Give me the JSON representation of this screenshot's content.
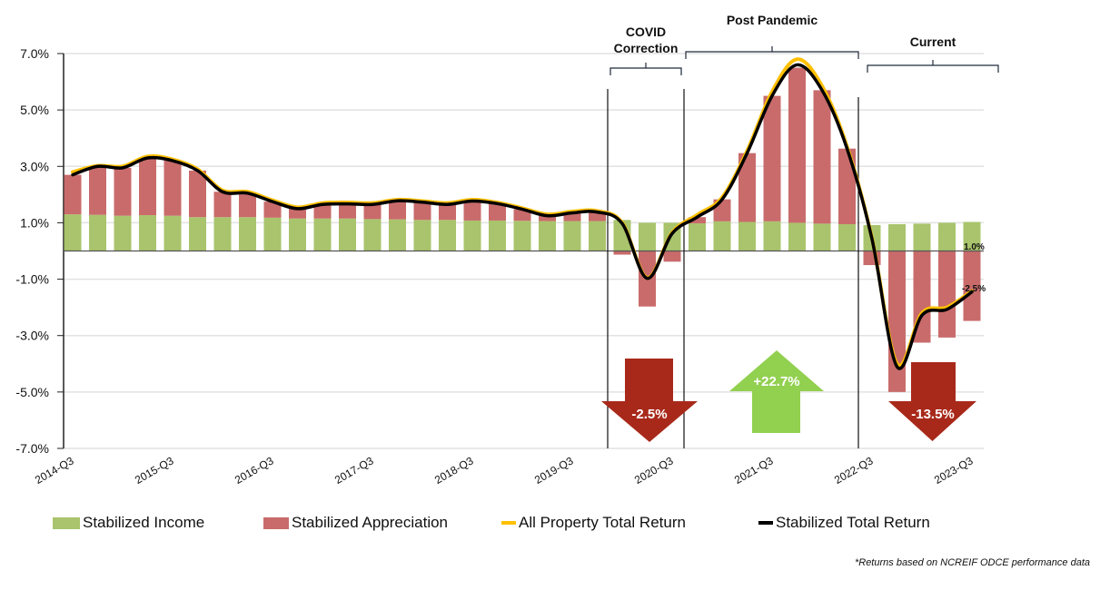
{
  "chart_data": {
    "type": "bar+line",
    "title": "",
    "xlabel": "",
    "ylabel": "",
    "ylim": [
      -7,
      7
    ],
    "yticks": [
      "7.0%",
      "5.0%",
      "3.0%",
      "1.0%",
      "-1.0%",
      "-3.0%",
      "-5.0%",
      "-7.0%"
    ],
    "ytick_values": [
      7,
      5,
      3,
      1,
      -1,
      -3,
      -5,
      -7
    ],
    "grid": true,
    "legend_position": "bottom",
    "categories": [
      "2014-Q3",
      "2014-Q4",
      "2015-Q1",
      "2015-Q2",
      "2015-Q3",
      "2015-Q4",
      "2016-Q1",
      "2016-Q2",
      "2016-Q3",
      "2016-Q4",
      "2017-Q1",
      "2017-Q2",
      "2017-Q3",
      "2017-Q4",
      "2018-Q1",
      "2018-Q2",
      "2018-Q3",
      "2018-Q4",
      "2019-Q1",
      "2019-Q2",
      "2019-Q3",
      "2019-Q4",
      "2020-Q1",
      "2020-Q2",
      "2020-Q3",
      "2020-Q4",
      "2021-Q1",
      "2021-Q2",
      "2021-Q3",
      "2021-Q4",
      "2022-Q1",
      "2022-Q2",
      "2022-Q3",
      "2022-Q4",
      "2023-Q1",
      "2023-Q2",
      "2023-Q3"
    ],
    "xtick_labels": [
      "2014-Q3",
      "2015-Q3",
      "2016-Q3",
      "2017-Q3",
      "2018-Q3",
      "2019-Q3",
      "2020-Q3",
      "2021-Q3",
      "2022-Q3",
      "2023-Q3"
    ],
    "series": [
      {
        "name": "Stabilized Income",
        "type": "stacked-bar",
        "color": "#A9C46C",
        "values": [
          1.3,
          1.28,
          1.25,
          1.27,
          1.25,
          1.2,
          1.2,
          1.2,
          1.18,
          1.15,
          1.15,
          1.15,
          1.13,
          1.12,
          1.1,
          1.1,
          1.08,
          1.08,
          1.07,
          1.06,
          1.06,
          1.06,
          1.1,
          1.0,
          1.0,
          0.98,
          1.05,
          1.03,
          1.05,
          1.0,
          0.97,
          0.95,
          0.92,
          0.95,
          0.97,
          1.0,
          1.03
        ]
      },
      {
        "name": "Stabilized Appreciation",
        "type": "stacked-bar",
        "color": "#C96B6B",
        "values": [
          1.4,
          1.72,
          1.7,
          2.03,
          1.95,
          1.65,
          0.9,
          0.85,
          0.57,
          0.35,
          0.5,
          0.52,
          0.52,
          0.66,
          0.63,
          0.55,
          0.69,
          0.6,
          0.41,
          0.19,
          0.29,
          0.32,
          -0.13,
          -1.97,
          -0.38,
          0.22,
          0.78,
          2.44,
          4.45,
          5.5,
          4.73,
          2.68,
          -0.5,
          -5.0,
          -3.25,
          -3.07,
          -2.48
        ]
      },
      {
        "name": "All Property Total Return",
        "type": "line",
        "color": "#FFC000",
        "values": [
          2.8,
          3.02,
          3.0,
          3.35,
          3.25,
          2.9,
          2.15,
          2.1,
          1.8,
          1.55,
          1.7,
          1.72,
          1.7,
          1.82,
          1.77,
          1.7,
          1.82,
          1.72,
          1.52,
          1.3,
          1.4,
          1.42,
          1.0,
          -0.95,
          0.65,
          1.28,
          1.9,
          3.55,
          5.65,
          6.8,
          5.85,
          3.7,
          0.45,
          -4.0,
          -2.2,
          -2.0,
          -1.42
        ]
      },
      {
        "name": "Stabilized Total Return",
        "type": "line",
        "color": "#000000",
        "values": [
          2.7,
          3.0,
          2.95,
          3.3,
          3.2,
          2.85,
          2.1,
          2.05,
          1.75,
          1.5,
          1.65,
          1.67,
          1.65,
          1.78,
          1.73,
          1.65,
          1.77,
          1.68,
          1.48,
          1.25,
          1.35,
          1.38,
          0.97,
          -0.97,
          0.62,
          1.2,
          1.83,
          3.47,
          5.5,
          6.6,
          5.7,
          3.63,
          0.42,
          -4.1,
          -2.28,
          -2.07,
          -1.45
        ]
      }
    ],
    "data_labels": [
      {
        "text": "1.0%",
        "category": "2023-Q3",
        "series": "Stabilized Income"
      },
      {
        "text": "-2.5%",
        "category": "2023-Q3",
        "series": "Stabilized Appreciation"
      }
    ],
    "annotations": {
      "periods": [
        {
          "label_lines": [
            "COVID",
            "Correction"
          ],
          "from": "2020-Q1",
          "to": "2020-Q3"
        },
        {
          "label_lines": [
            "Post Pandemic"
          ],
          "from": "2020-Q4",
          "to": "2022-Q2"
        },
        {
          "label_lines": [
            "Current"
          ],
          "from": "2022-Q3",
          "to": "2023-Q3"
        }
      ],
      "arrows": [
        {
          "text": "-2.5%",
          "direction": "down",
          "color": "#A8291A"
        },
        {
          "text": "+22.7%",
          "direction": "up",
          "color": "#92D050"
        },
        {
          "text": "-13.5%",
          "direction": "down",
          "color": "#A8291A"
        }
      ]
    }
  },
  "legend": [
    {
      "label": "Stabilized Income",
      "color": "#A9C46C",
      "kind": "box"
    },
    {
      "label": "Stabilized Appreciation",
      "color": "#C96B6B",
      "kind": "box"
    },
    {
      "label": "All Property Total Return",
      "color": "#FFC000",
      "kind": "line"
    },
    {
      "label": "Stabilized Total Return",
      "color": "#000000",
      "kind": "line"
    }
  ],
  "footnote": "*Returns based on NCREIF ODCE performance data"
}
